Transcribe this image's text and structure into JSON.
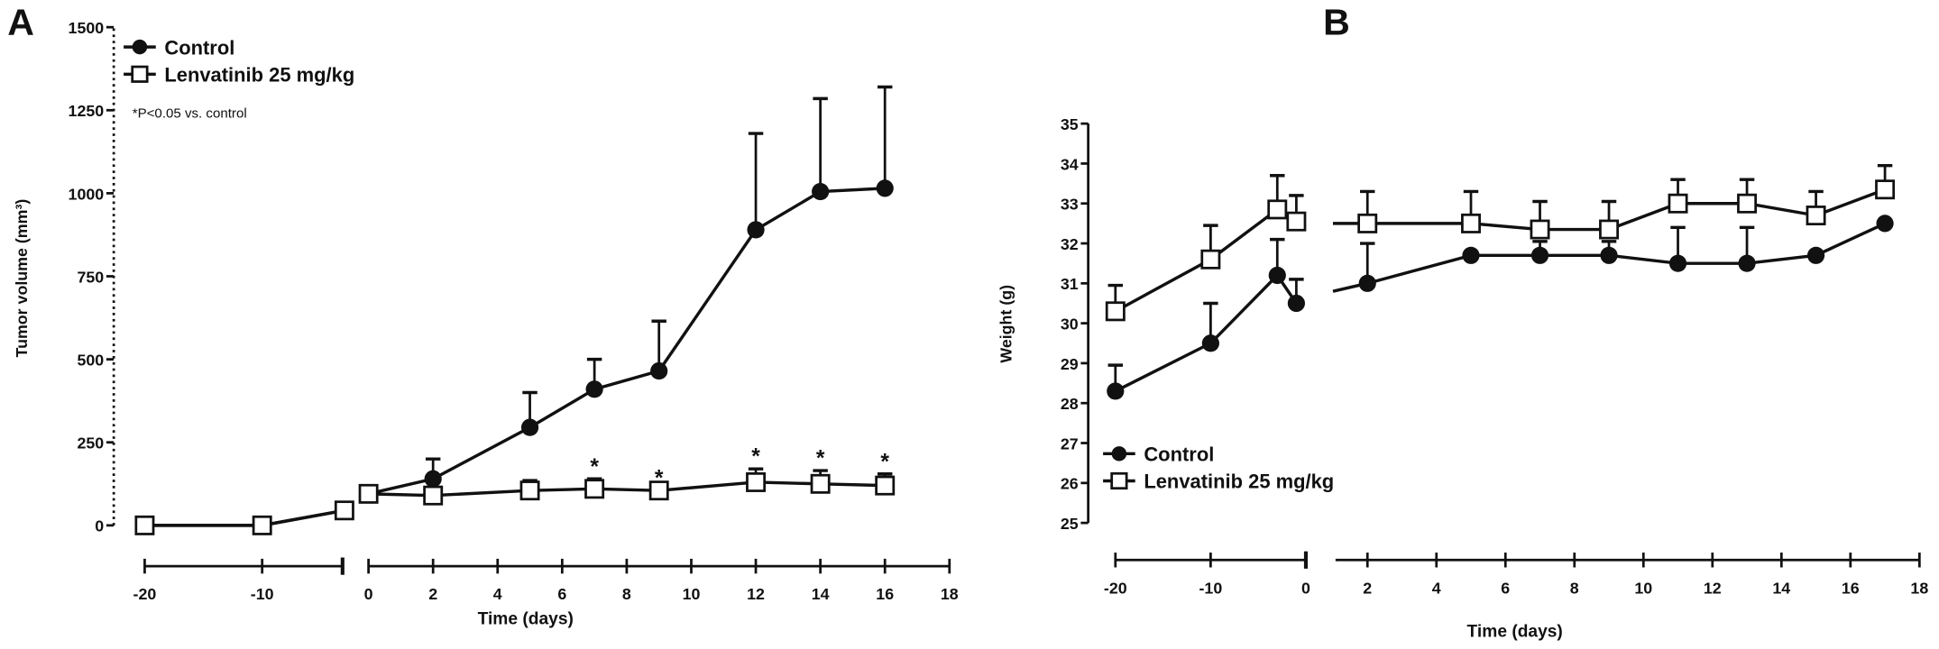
{
  "chart_data": [
    {
      "panel_label": "A",
      "type": "line",
      "xlabel": "Time (days)",
      "ylabel": "Tumor volume (mm³)",
      "ylim": [
        0,
        1500
      ],
      "yticks": [
        "0",
        "250",
        "500",
        "750",
        "1000",
        "1250",
        "1500"
      ],
      "xticks_pre": [
        "-20",
        "-10"
      ],
      "xticks_post": [
        "0",
        "2",
        "4",
        "6",
        "8",
        "10",
        "12",
        "14",
        "16",
        "18"
      ],
      "annotation": "*P<0.05 vs. control",
      "significance_marker": "*",
      "significant_days": [
        7,
        9,
        12,
        14,
        16
      ],
      "series": [
        {
          "name": "Control",
          "marker": "filled-circle",
          "x": [
            -20,
            -10,
            -3,
            0,
            2,
            5,
            7,
            9,
            12,
            14,
            16
          ],
          "y": [
            0,
            0,
            45,
            95,
            140,
            295,
            410,
            465,
            890,
            1005,
            1015
          ],
          "err_upper": [
            null,
            null,
            null,
            115,
            200,
            400,
            500,
            615,
            1180,
            1285,
            1320
          ]
        },
        {
          "name": "Lenvatinib 25 mg/kg",
          "marker": "open-square",
          "x": [
            -20,
            -10,
            -3,
            0,
            2,
            5,
            7,
            9,
            12,
            14,
            16
          ],
          "y": [
            0,
            0,
            45,
            95,
            90,
            105,
            110,
            105,
            130,
            125,
            120
          ],
          "err_upper": [
            null,
            null,
            null,
            115,
            null,
            135,
            140,
            null,
            170,
            165,
            155
          ]
        }
      ],
      "legend": "top-left"
    },
    {
      "panel_label": "B",
      "type": "line",
      "xlabel": "Time (days)",
      "ylabel": "Weight (g)",
      "ylim": [
        25,
        35
      ],
      "yticks": [
        "25",
        "26",
        "27",
        "28",
        "29",
        "30",
        "31",
        "32",
        "33",
        "34",
        "35"
      ],
      "xticks_pre": [
        "-20",
        "-10",
        "0"
      ],
      "xticks_post": [
        "2",
        "4",
        "6",
        "8",
        "10",
        "12",
        "14",
        "16",
        "18"
      ],
      "series": [
        {
          "name": "Control",
          "marker": "filled-circle",
          "x": [
            -20,
            -10,
            -3,
            -1,
            2,
            5,
            7,
            9,
            11,
            13,
            15,
            17
          ],
          "y": [
            28.3,
            29.5,
            31.2,
            30.5,
            31.0,
            31.7,
            31.7,
            31.7,
            31.5,
            31.5,
            31.7,
            32.5
          ],
          "err_upper": [
            28.95,
            30.5,
            32.1,
            31.1,
            32.0,
            null,
            32.05,
            32.05,
            32.4,
            32.4,
            null,
            null
          ]
        },
        {
          "name": "Lenvatinib 25 mg/kg",
          "marker": "open-square",
          "x": [
            -20,
            -10,
            -3,
            -1,
            2,
            5,
            7,
            9,
            11,
            13,
            15,
            17
          ],
          "y": [
            30.3,
            31.6,
            32.85,
            32.55,
            32.5,
            32.5,
            32.35,
            32.35,
            33.0,
            33.0,
            32.7,
            33.35
          ],
          "err_upper": [
            30.95,
            32.45,
            33.7,
            33.2,
            33.3,
            33.3,
            33.05,
            33.05,
            33.6,
            33.6,
            33.3,
            33.95
          ]
        }
      ],
      "legend": "bottom-left"
    }
  ]
}
